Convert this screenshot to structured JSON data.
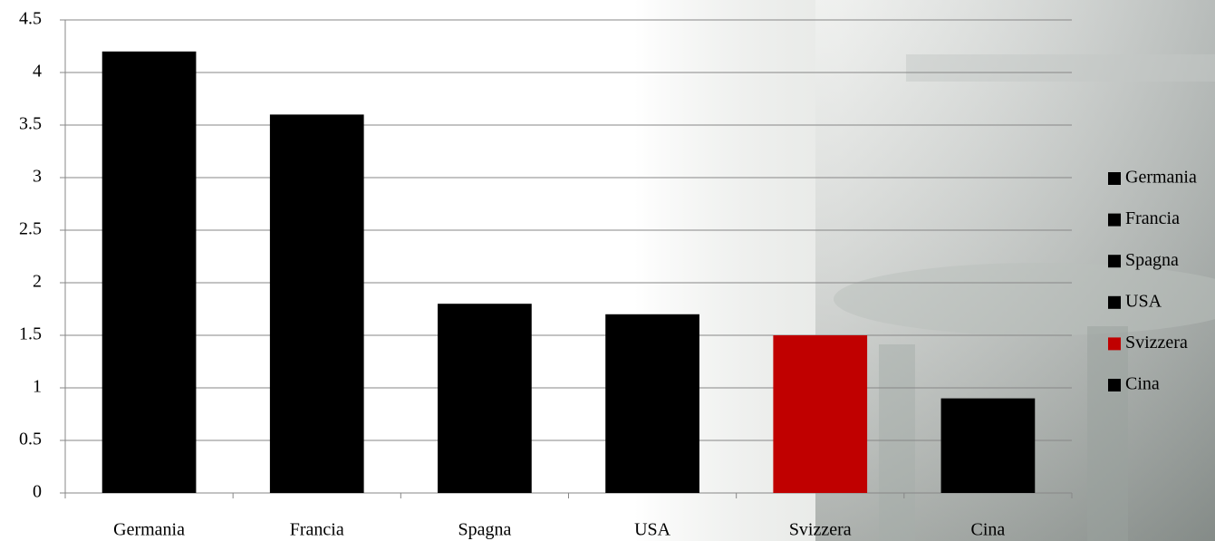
{
  "chart_data": {
    "type": "bar",
    "categories": [
      "Germania",
      "Francia",
      "Spagna",
      "USA",
      "Svizzera",
      "Cina"
    ],
    "values": [
      4.2,
      3.6,
      1.8,
      1.7,
      1.5,
      0.9
    ],
    "colors": [
      "#000000",
      "#000000",
      "#000000",
      "#000000",
      "#c00000",
      "#000000"
    ],
    "ylim": [
      0,
      4.5
    ],
    "yticks": [
      0,
      0.5,
      1,
      1.5,
      2,
      2.5,
      3,
      3.5,
      4,
      4.5
    ],
    "grid": true,
    "legend": "right"
  }
}
